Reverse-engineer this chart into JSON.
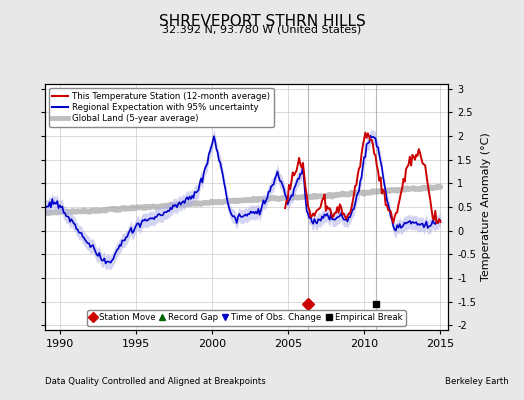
{
  "title": "SHREVEPORT STHRN HILLS",
  "subtitle": "32.392 N, 93.780 W (United States)",
  "xlabel_left": "Data Quality Controlled and Aligned at Breakpoints",
  "xlabel_right": "Berkeley Earth",
  "ylabel": "Temperature Anomaly (°C)",
  "xlim": [
    1989.0,
    2015.5
  ],
  "ylim": [
    -2.1,
    3.1
  ],
  "yticks": [
    -2,
    -1.5,
    -1,
    -0.5,
    0,
    0.5,
    1,
    1.5,
    2,
    2.5,
    3
  ],
  "xticks": [
    1990,
    1995,
    2000,
    2005,
    2010,
    2015
  ],
  "station_move_year": 2006.3,
  "station_move_val": -1.55,
  "empirical_break_year": 2010.8,
  "empirical_break_val": -1.55,
  "background_color": "#e8e8e8",
  "plot_bg_color": "#ffffff",
  "red_color": "#cc0000",
  "blue_color": "#0000cc",
  "blue_fill_color": "#b0b0e8",
  "gray_color": "#aaaaaa",
  "grid_color": "#cccccc",
  "green_color": "#006600"
}
